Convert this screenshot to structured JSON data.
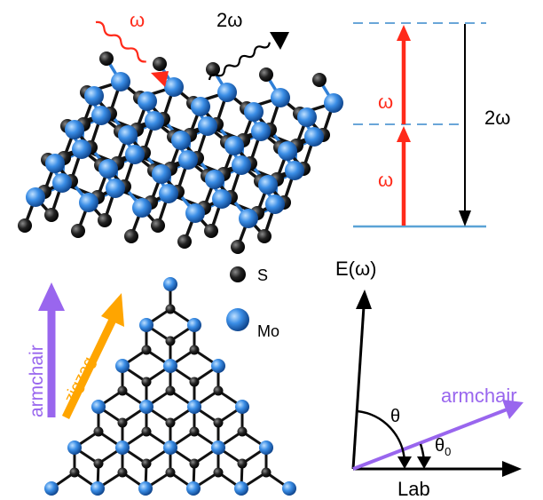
{
  "colors": {
    "red": "#ff2a1a",
    "black": "#000000",
    "dashed": "#6aa6d8",
    "baseline": "#5aa3d6",
    "purple": "#9966ee",
    "orange": "#ffa500",
    "mo_blue": "#2f7fd6",
    "s_black": "#1a1a1a"
  },
  "panel_a": {
    "incident_label": "ω",
    "sh_label": "2ω"
  },
  "panel_b": {
    "lower_photon_label": "ω",
    "upper_photon_label": "ω",
    "emission_label": "2ω"
  },
  "panel_c": {
    "armchair_label": "armchair",
    "zigzag_label": "zigzag",
    "legend": [
      {
        "label": "S",
        "icon": "sulfur-atom-icon"
      },
      {
        "label": "Mo",
        "icon": "molybdenum-atom-icon"
      }
    ]
  },
  "panel_d": {
    "field_label": "E(ω)",
    "armchair_label": "armchair",
    "theta_label": "θ",
    "theta0_label": "θ",
    "theta0_subscript": "0",
    "lab_label": "Lab"
  }
}
